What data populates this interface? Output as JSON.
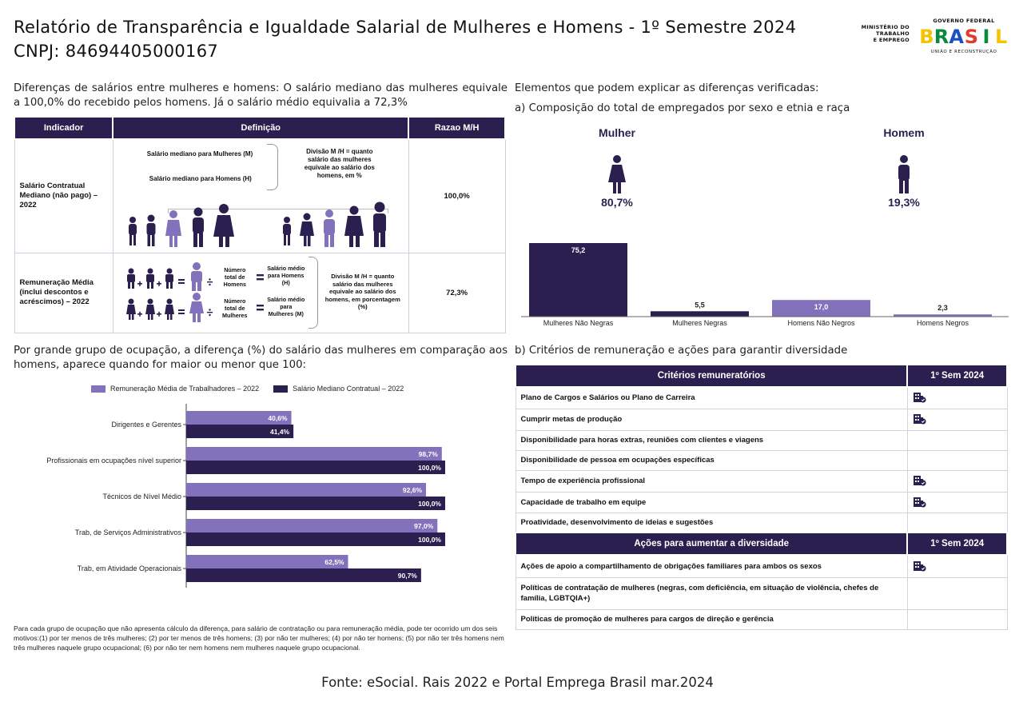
{
  "header": {
    "title_line1": "Relatório de Transparência e Igualdade Salarial de Mulheres e Homens - 1º Semestre 2024",
    "title_line2": "CNPJ: 84694405000167",
    "ministry_lines": [
      "MINISTÉRIO DO",
      "TRABALHO",
      "E EMPREGO"
    ],
    "gov_top": "GOVERNO FEDERAL",
    "gov_word": "BRASIL",
    "gov_bottom": "UNIÃO E RECONSTRUÇÃO"
  },
  "left_intro": "Diferenças de salários entre mulheres e homens: O salário mediano das mulheres equivale a 100,0% do recebido pelos homens. Já o salário médio equivalia a 72,3%",
  "indicator_table": {
    "headers": [
      "Indicador",
      "Definição",
      "Razao M/H"
    ],
    "row1": {
      "indicator": "Salário Contratual Mediano (não pago) – 2022",
      "def_mulheres": "Salário mediano para Mulheres (M)",
      "def_homens": "Salário mediano para Homens (H)",
      "def_division": "Divisão M /H = quanto salário das mulheres equivale ao salário dos homens, em %",
      "ratio": "100,0%"
    },
    "row2": {
      "indicator": "Remuneração Média (inclui descontos e acréscimos) – 2022",
      "num_total_homens": "Número total de Homens",
      "num_total_mulheres": "Número total de Mulheres",
      "sal_medio_homens": "Salário médio para Homens (H)",
      "sal_medio_mulheres": "Salário médio para Mulheres (M)",
      "def_division": "Divisão M /H = quanto salário das mulheres equivale ao salário dos homens, em porcentagem (%)",
      "ratio": "72,3%"
    }
  },
  "occupation_intro": "Por grande grupo de ocupação, a diferença (%) do salário das mulheres em comparação aos homens, aparece quando for maior ou menor que 100:",
  "chart_data": [
    {
      "type": "bar",
      "orientation": "horizontal",
      "categories": [
        "Dirigentes e Gerentes",
        "Profissionais em ocupações nível superior",
        "Técnicos de Nível Médio",
        "Trab, de Serviços Administrativos",
        "Trab, em Atividade Operacionais"
      ],
      "series": [
        {
          "name": "Remuneração Média de Trabalhadores – 2022",
          "values": [
            40.6,
            98.7,
            92.6,
            97.0,
            62.5
          ],
          "labels": [
            "40,6%",
            "98,7%",
            "92,6%",
            "97,0%",
            "62,5%"
          ],
          "color": "#8172bb"
        },
        {
          "name": "Salário Mediano Contratual – 2022",
          "values": [
            41.4,
            100.0,
            100.0,
            100.0,
            90.7
          ],
          "labels": [
            "41,4%",
            "100,0%",
            "100,0%",
            "100,0%",
            "90,7%"
          ],
          "color": "#2b1f4f"
        }
      ],
      "xlim": [
        0,
        100
      ]
    },
    {
      "type": "bar",
      "categories": [
        "Mulheres Não Negras",
        "Mulheres Negras",
        "Homens Não Negros",
        "Homens Negros"
      ],
      "values": [
        75.2,
        5.5,
        17.0,
        2.3
      ],
      "labels": [
        "75,2",
        "5,5",
        "17,0",
        "2,3"
      ],
      "colors": [
        "#2b1f4f",
        "#2b1f4f",
        "#8172bb",
        "#8172bb"
      ],
      "ylim": [
        0,
        75.2
      ]
    }
  ],
  "footnote": "Para cada grupo de ocupação que não apresenta cálculo da diferença, para salário de contratação ou para remuneração média, pode ter ocorrido um dos seis motivos:(1) por ter menos de três mulheres; (2) por ter menos de três homens; (3) por não ter mulheres; (4) por não ter homens; (5) por não ter três homens nem três mulheres naquele grupo ocupacional; (6) por não ter nem homens nem mulheres naquele grupo ocupacional.",
  "right": {
    "heading": "Elementos que podem explicar as diferenças verificadas:",
    "sub_a": "a) Composição do total de empregados por sexo e etnia e raça",
    "mulher_label": "Mulher",
    "mulher_pct": "80,7%",
    "homem_label": "Homem",
    "homem_pct": "19,3%",
    "sub_b": "b) Critérios de remuneração e ações para garantir diversidade"
  },
  "criteria_table": {
    "header1": "Critérios remuneratórios",
    "header_sem": "1º Sem 2024",
    "criteria": [
      {
        "label": "Plano de Cargos e Salários ou Plano de Carreira",
        "checked": true
      },
      {
        "label": "Cumprir metas de produção",
        "checked": true
      },
      {
        "label": "Disponibilidade para horas extras, reuniões com clientes e viagens",
        "checked": false
      },
      {
        "label": "Disponibilidade de pessoa em ocupações específicas",
        "checked": false
      },
      {
        "label": "Tempo de experiência profissional",
        "checked": true
      },
      {
        "label": "Capacidade de trabalho em equipe",
        "checked": true
      },
      {
        "label": "Proatividade, desenvolvimento de ideias e sugestões",
        "checked": false
      }
    ],
    "header2": "Ações para aumentar a diversidade",
    "actions": [
      {
        "label": "Ações de apoio a compartilhamento de obrigações familiares para ambos os sexos",
        "checked": true
      },
      {
        "label": "Políticas de contratação de mulheres (negras, com deficiência, em situação de violência, chefes de família, LGBTQIA+)",
        "checked": false
      },
      {
        "label": "Políticas de promoção de mulheres para cargos de direção e gerência",
        "checked": false
      }
    ]
  },
  "source": "Fonte: eSocial. Rais 2022 e Portal Emprega Brasil mar.2024"
}
